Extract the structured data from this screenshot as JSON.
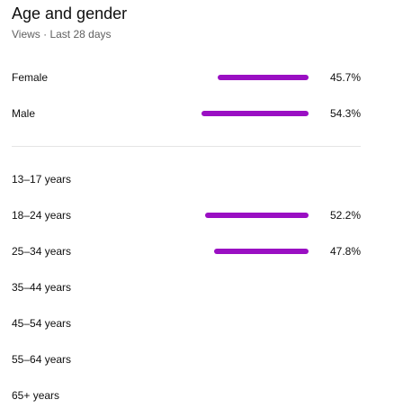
{
  "header": {
    "title": "Age and gender",
    "subtitle": "Views · Last 28 days"
  },
  "accent_color": "#9a0fc3",
  "gender": [
    {
      "label": "Female",
      "percent": 45.7,
      "value": "45.7%"
    },
    {
      "label": "Male",
      "percent": 54.3,
      "value": "54.3%"
    }
  ],
  "age": [
    {
      "label": "13–17 years",
      "percent": 0,
      "value": ""
    },
    {
      "label": "18–24 years",
      "percent": 52.2,
      "value": "52.2%"
    },
    {
      "label": "25–34 years",
      "percent": 47.8,
      "value": "47.8%"
    },
    {
      "label": "35–44 years",
      "percent": 0,
      "value": ""
    },
    {
      "label": "45–54 years",
      "percent": 0,
      "value": ""
    },
    {
      "label": "55–64 years",
      "percent": 0,
      "value": ""
    },
    {
      "label": "65+ years",
      "percent": 0,
      "value": ""
    }
  ]
}
